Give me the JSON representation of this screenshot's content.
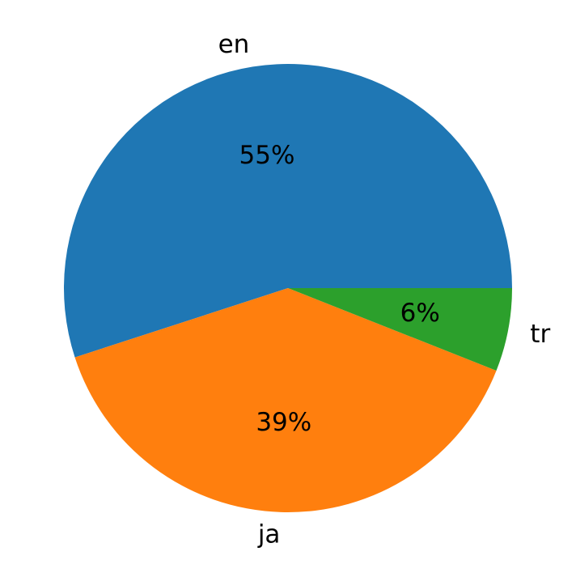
{
  "chart_data": {
    "type": "pie",
    "categories": [
      "en",
      "ja",
      "tr"
    ],
    "values": [
      55,
      39,
      6
    ],
    "value_labels": [
      "55%",
      "39%",
      "6%"
    ],
    "colors": [
      "#1f77b4",
      "#ff7f0e",
      "#2ca02c"
    ]
  }
}
